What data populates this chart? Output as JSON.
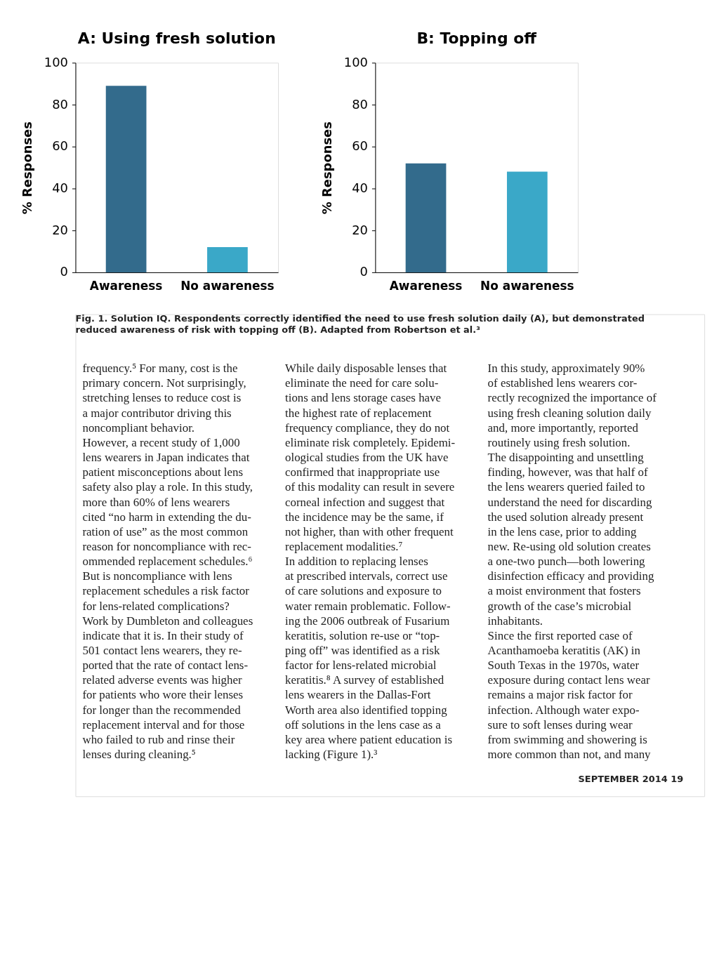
{
  "chart_data": [
    {
      "type": "bar",
      "title": "A: Using fresh solution",
      "categories": [
        "Awareness",
        "No awareness"
      ],
      "values": [
        89,
        12
      ],
      "colors": [
        "#336b8c",
        "#3aa8c8"
      ],
      "ylabel": "% Responses",
      "ylim": [
        0,
        100
      ],
      "yticks": [
        0,
        20,
        40,
        60,
        80,
        100
      ],
      "grid": false,
      "legend": false,
      "annotations": [
        "Fig. 1. Solution IQ. Respondents correctly identified the need to use fresh solution daily (A), but demonstrated\nreduced awareness of risk with topping off (B). Adapted from Robertson et al.³",
        "frequency.⁵ For many, cost is the\nprimary concern. Not surprisingly,\nstretching lenses to reduce cost is\na major contributor driving this\nnoncompliant behavior.\n    However, a recent study of 1,000\nlens wearers in Japan indicates that\npatient misconceptions about lens\nsafety also play a role. In this study,\nmore than 60% of lens wearers\ncited “no harm in extending the du-\nration of use” as the most common\nreason for noncompliance with rec-\nommended replacement schedules.⁶\nBut is noncompliance with lens\nreplacement schedules a risk factor\nfor lens-related complications?\nWork by Dumbleton and colleagues\nindicate that it is. In their study of\n501 contact lens wearers, they re-\nported that the rate of contact lens-\nrelated adverse events was higher\nfor patients who wore their lenses\nfor longer than the recommended\nreplacement interval and for those\nwho failed to rub and rinse their\nlenses during cleaning.⁵",
        "    While daily disposable lenses that\neliminate the need for care solu-\ntions and lens storage cases have\nthe highest rate of replacement\nfrequency compliance, they do not\neliminate risk completely. Epidemi-\nological studies from the UK have\nconfirmed that inappropriate use\nof this modality can result in severe\ncorneal infection and suggest that\nthe incidence may be the same, if\nnot higher, than with other frequent\nreplacement modalities.⁷\n    In addition to replacing lenses\nat prescribed intervals, correct use\nof care solutions and exposure to\nwater remain problematic. Follow-\ning the 2006 outbreak of Fusarium\nkeratitis, solution re-use or “top-\nping off” was identified as a risk\nfactor for lens-related microbial\nkeratitis.⁸ A survey of established\nlens wearers in the Dallas-Fort\nWorth area also identified topping\noff solutions in the lens case as a\nkey area where patient education is\nlacking (Figure 1).³",
        "    In this study, approximately 90%\nof established lens wearers cor-\nrectly recognized the importance of\nusing fresh cleaning solution daily\nand, more importantly, reported\nroutinely using fresh solution.\nThe disappointing and unsettling\nfinding, however, was that half of\nthe lens wearers queried failed to\nunderstand the need for discarding\nthe used solution already present\nin the lens case, prior to adding\nnew. Re-using old solution creates\na one-two punch—both lowering\ndisinfection efficacy and providing\na moist environment that fosters\ngrowth of the case’s microbial\ninhabitants.\n    Since the first reported case of\nAcanthamoeba keratitis (AK) in\nSouth Texas in the 1970s, water\nexposure during contact lens wear\nremains a major risk factor for\ninfection. Although water expo-\nsure to soft lenses during wear\nfrom swimming and showering is\nmore common than not, and many",
        "SEPTEMBER 2014   19"
      ]
    },
    {
      "type": "bar",
      "title": "B: Topping off",
      "categories": [
        "Awareness",
        "No awareness"
      ],
      "values": [
        52,
        48
      ],
      "colors": [
        "#336b8c",
        "#3aa8c8"
      ],
      "ylabel": "% Responses",
      "ylim": [
        0,
        100
      ],
      "yticks": [
        0,
        20,
        40,
        60,
        80,
        100
      ],
      "grid": false,
      "legend": false
    }
  ]
}
